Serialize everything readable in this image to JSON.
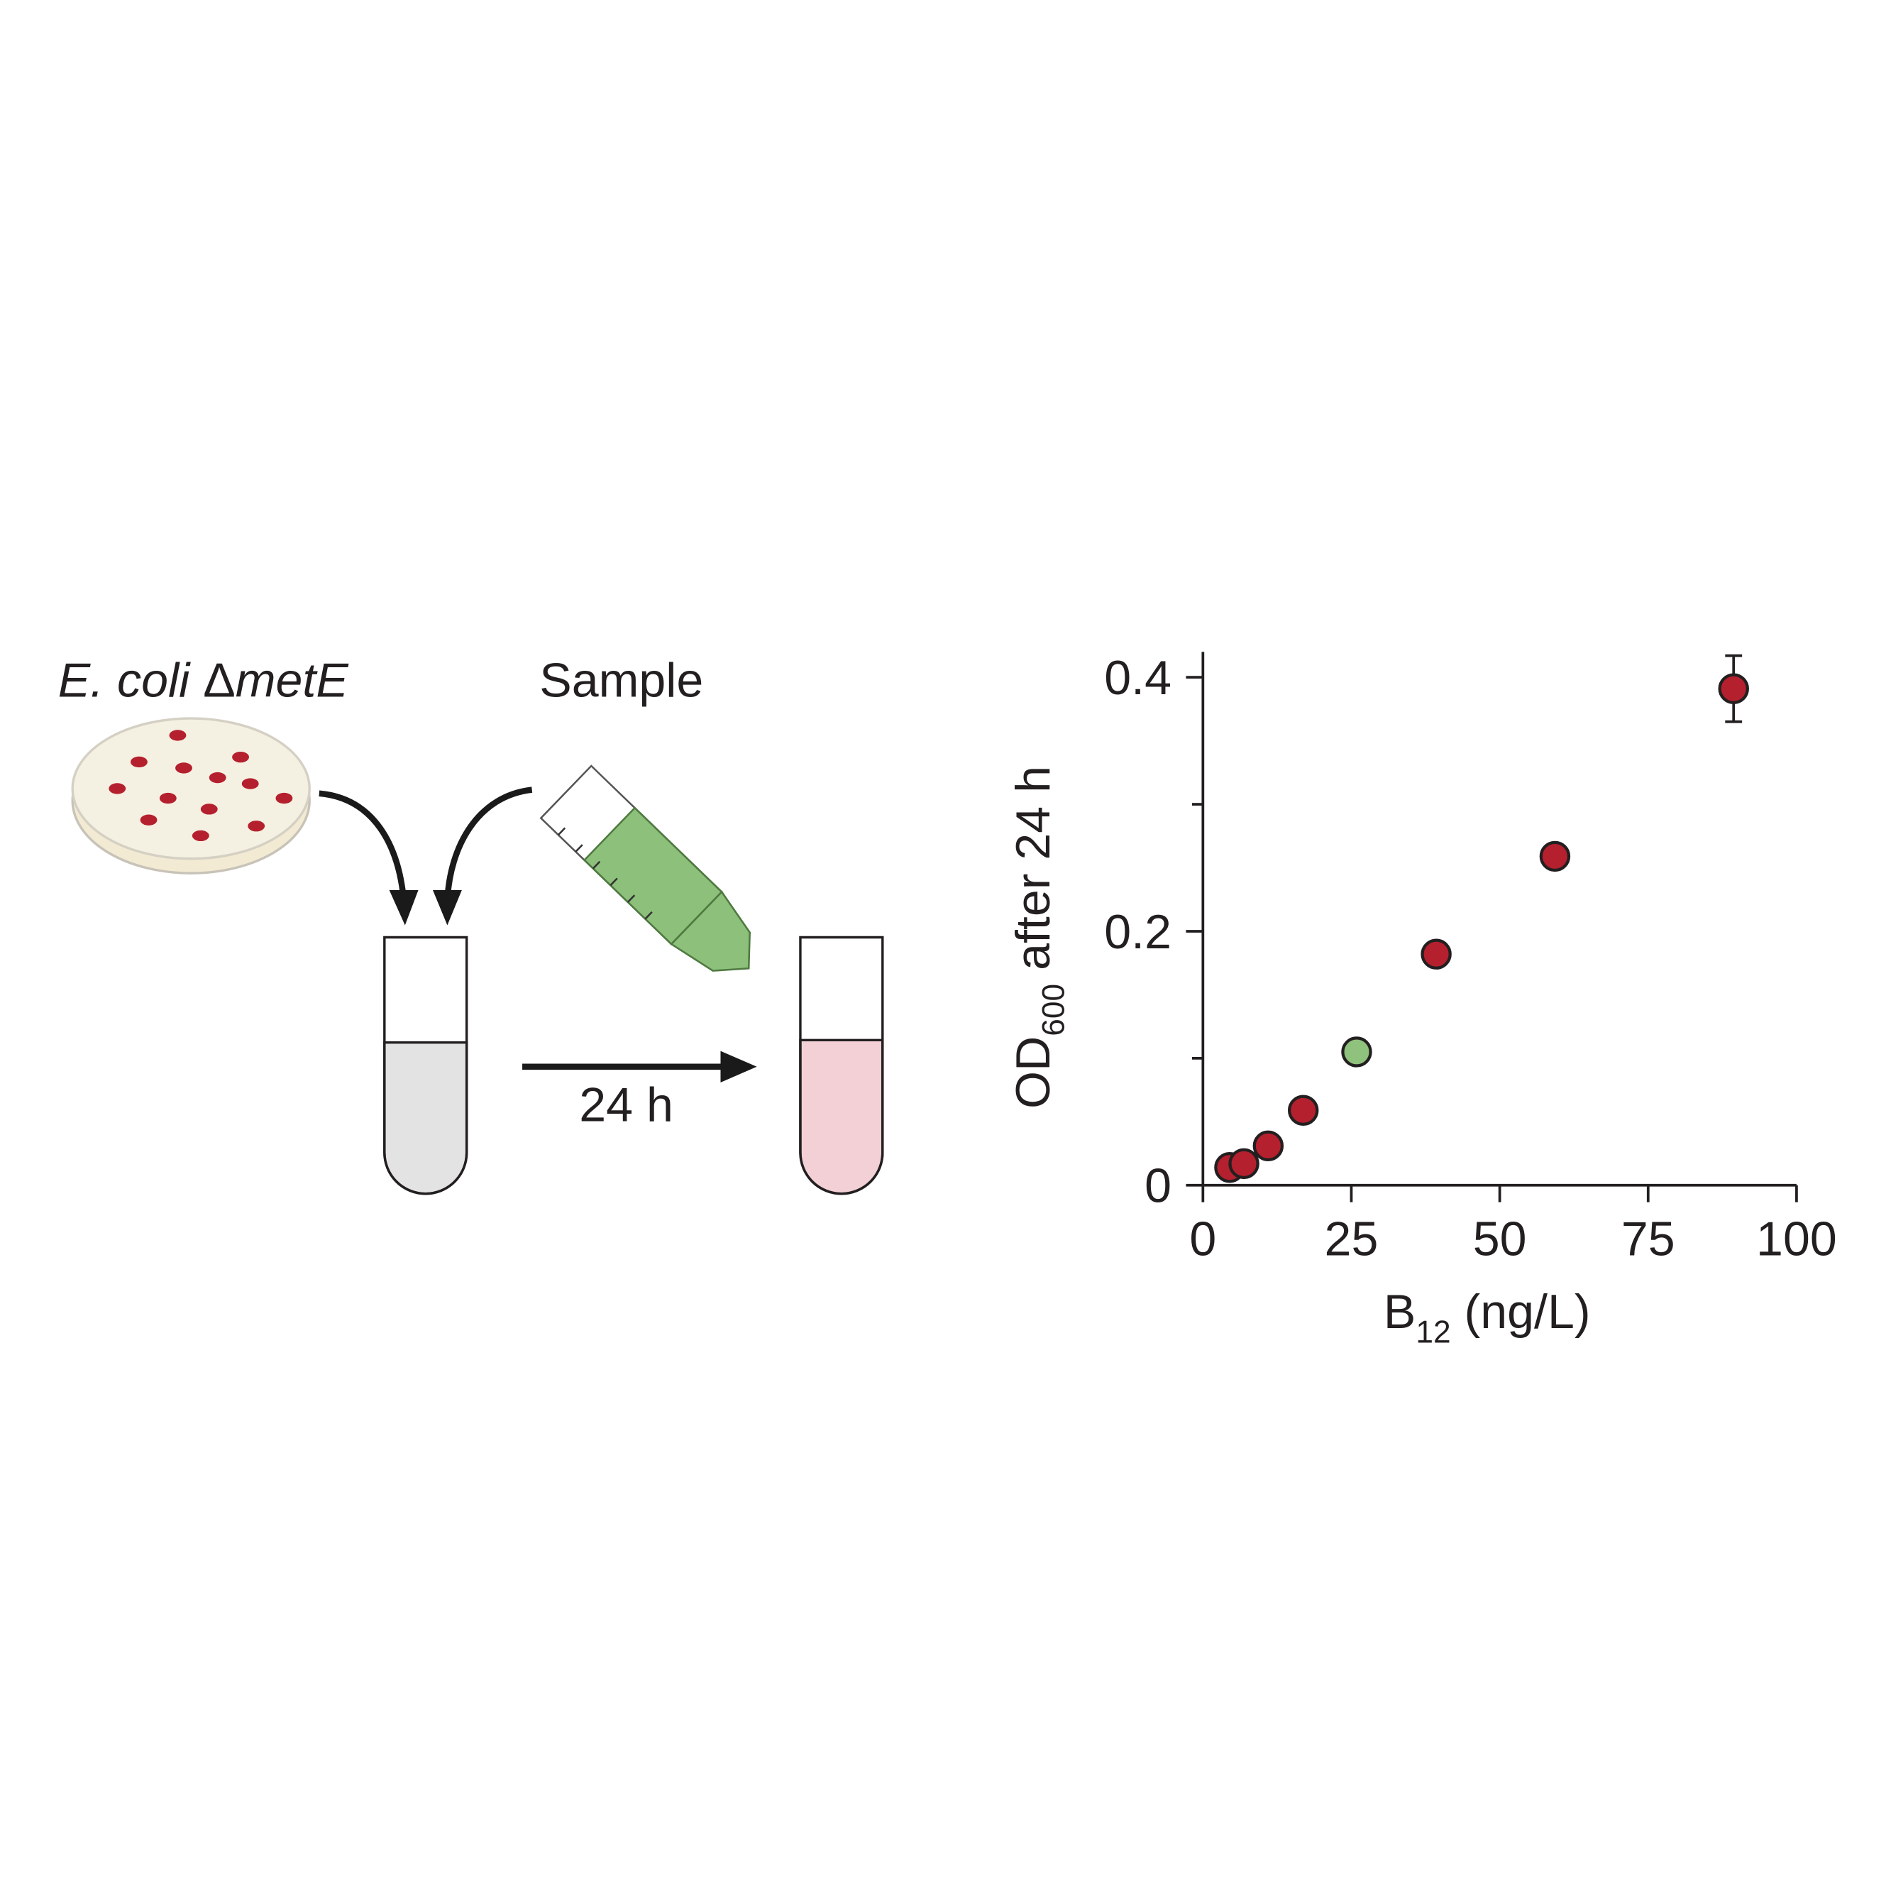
{
  "diagram": {
    "strain_label": [
      "E. coli ",
      "Δ",
      "metE"
    ],
    "sample_label": "Sample",
    "incubation_label": "24 h"
  },
  "chart_data": {
    "type": "scatter",
    "xlabel": [
      "B",
      "12",
      " (ng/L)"
    ],
    "ylabel": [
      "OD",
      "600",
      " after 24 h"
    ],
    "x": [
      4.5,
      6.9,
      11.0,
      16.9,
      25.9,
      39.3,
      59.3,
      89.4
    ],
    "y": [
      0.014,
      0.017,
      0.031,
      0.059,
      0.105,
      0.182,
      0.259,
      0.391
    ],
    "errors": [
      null,
      null,
      null,
      null,
      null,
      null,
      null,
      0.026
    ],
    "colors": [
      "#b5202e",
      "#b5202e",
      "#b5202e",
      "#b5202e",
      "#8fc27c",
      "#b5202e",
      "#b5202e",
      "#b5202e"
    ],
    "xlim": [
      0,
      100
    ],
    "xticks": [
      0,
      25,
      50,
      75,
      100
    ],
    "ylim": [
      0,
      0.42
    ],
    "yticks": [
      0,
      0.2,
      0.4
    ],
    "minor_yticks": [
      0.1,
      0.3
    ]
  }
}
